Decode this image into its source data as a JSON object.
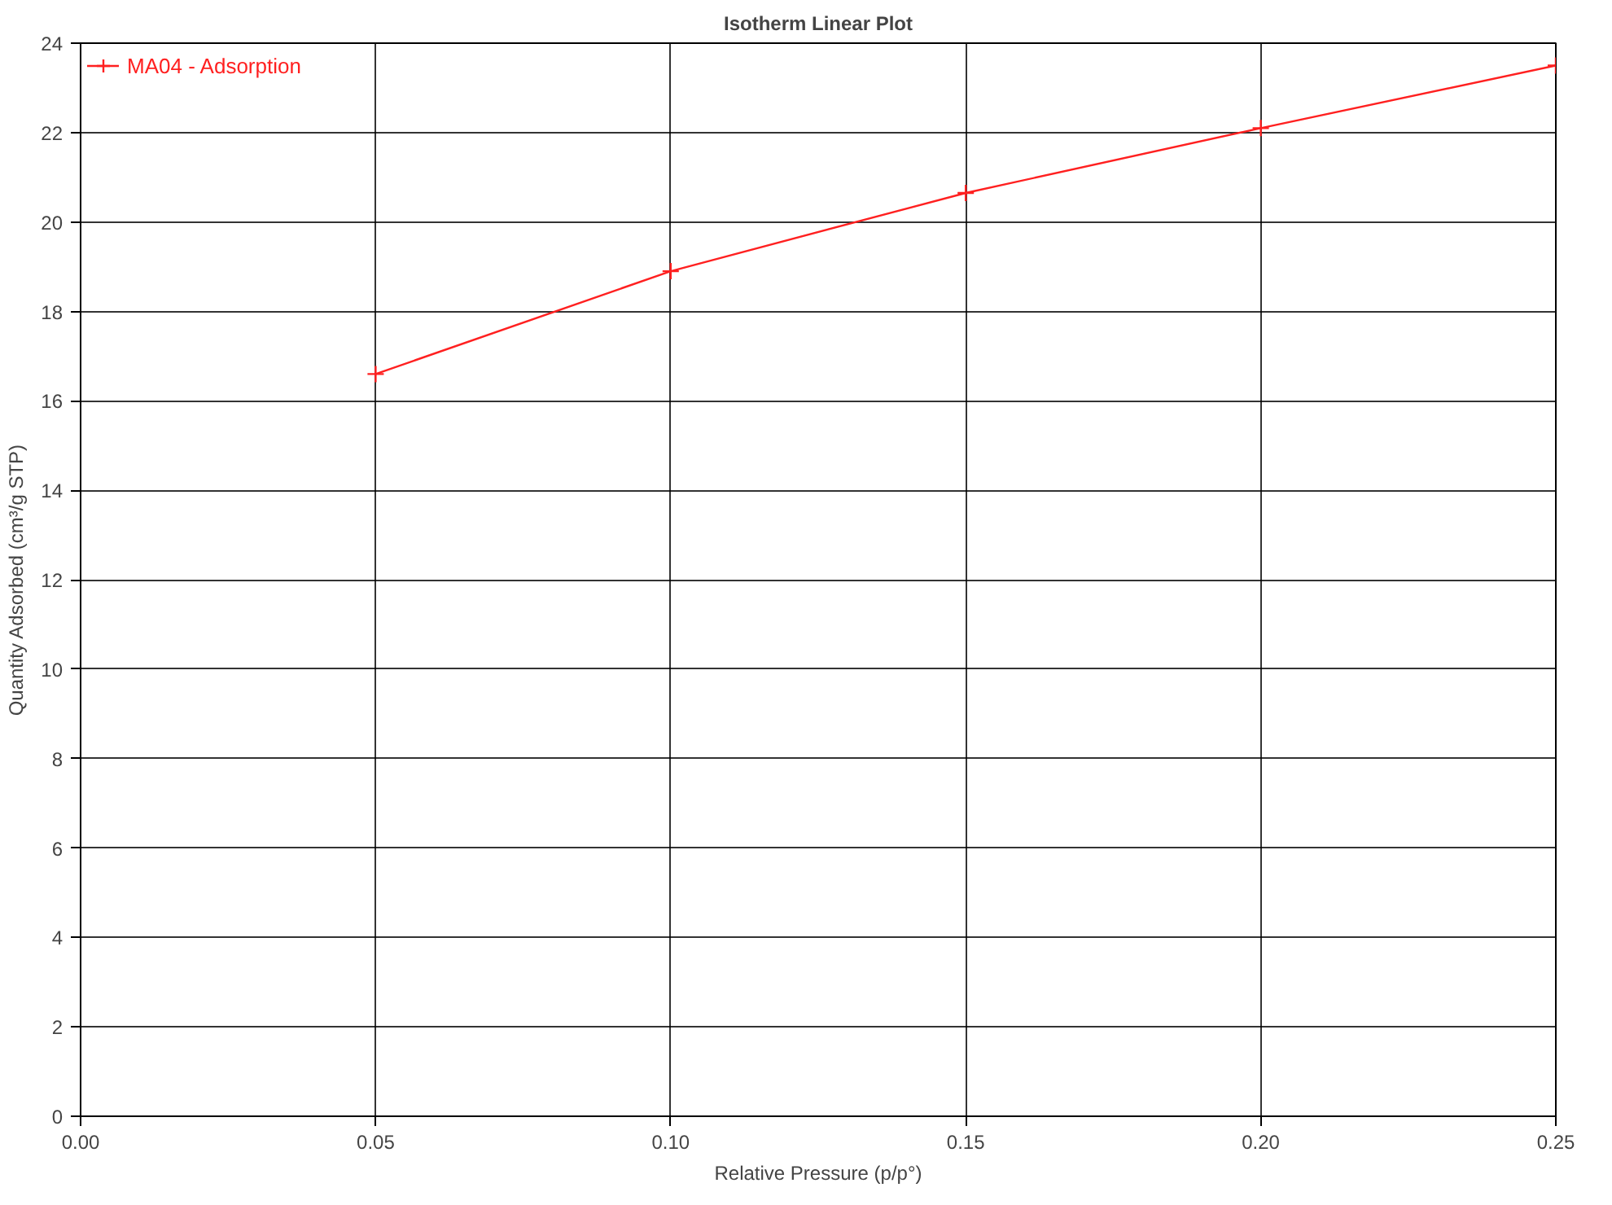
{
  "chart_data": {
    "type": "line",
    "title": "Isotherm Linear Plot",
    "xlabel": "Relative Pressure (p/p°)",
    "ylabel": "Quantity Adsorbed (cm³/g STP)",
    "x": [
      0.05,
      0.1,
      0.15,
      0.2,
      0.25
    ],
    "series": [
      {
        "name": "MA04 - Adsorption",
        "color": "#ff2020",
        "values": [
          16.6,
          18.9,
          20.65,
          22.1,
          23.5
        ]
      }
    ],
    "xlim": [
      0,
      0.25
    ],
    "ylim": [
      0,
      24
    ],
    "xticks": [
      {
        "value": 0,
        "label": "0.00"
      },
      {
        "value": 0.05,
        "label": "0.05"
      },
      {
        "value": 0.1,
        "label": "0.10"
      },
      {
        "value": 0.15,
        "label": "0.15"
      },
      {
        "value": 0.2,
        "label": "0.20"
      },
      {
        "value": 0.25,
        "label": "0.25"
      }
    ],
    "yticks": [
      0,
      2,
      4,
      6,
      8,
      10,
      12,
      14,
      16,
      18,
      20,
      22,
      24
    ],
    "grid": true,
    "legend": "top left",
    "marker": "cross",
    "line_style": "solid"
  }
}
